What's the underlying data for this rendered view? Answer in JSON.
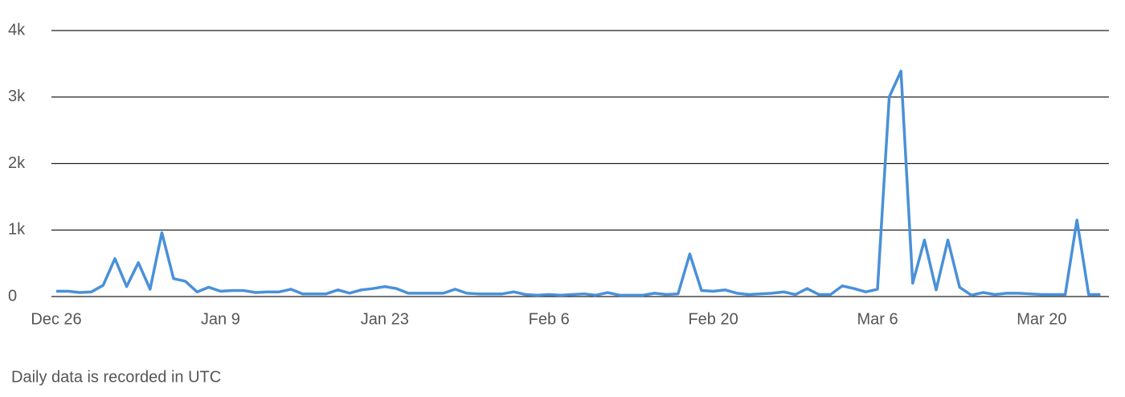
{
  "chart_data": {
    "type": "line",
    "categories": [
      "Dec 26",
      null,
      null,
      null,
      null,
      null,
      null,
      null,
      null,
      null,
      null,
      null,
      null,
      null,
      "Jan 9",
      null,
      null,
      null,
      null,
      null,
      null,
      null,
      null,
      null,
      null,
      null,
      null,
      null,
      "Jan 23",
      null,
      null,
      null,
      null,
      null,
      null,
      null,
      null,
      null,
      null,
      null,
      null,
      null,
      "Feb 6",
      null,
      null,
      null,
      null,
      null,
      null,
      null,
      null,
      null,
      null,
      null,
      null,
      null,
      "Feb 20",
      null,
      null,
      null,
      null,
      null,
      null,
      null,
      null,
      null,
      null,
      null,
      null,
      null,
      "Mar 6",
      null,
      null,
      null,
      null,
      null,
      null,
      null,
      null,
      null,
      null,
      null,
      null,
      null,
      "Mar 20",
      null,
      null,
      null,
      null,
      null
    ],
    "series": [
      {
        "name": "Daily",
        "color": "#4a90d9",
        "values": [
          80,
          80,
          60,
          70,
          170,
          570,
          150,
          510,
          110,
          960,
          270,
          230,
          70,
          140,
          80,
          90,
          90,
          60,
          70,
          70,
          110,
          40,
          40,
          40,
          100,
          50,
          100,
          120,
          150,
          120,
          50,
          50,
          50,
          50,
          110,
          50,
          40,
          40,
          40,
          70,
          30,
          20,
          30,
          20,
          30,
          40,
          20,
          60,
          20,
          20,
          20,
          50,
          30,
          40,
          640,
          90,
          80,
          100,
          50,
          30,
          40,
          50,
          70,
          30,
          120,
          30,
          30,
          160,
          120,
          70,
          110,
          3000,
          3390,
          200,
          850,
          100,
          850,
          140,
          20,
          60,
          30,
          50,
          50,
          40,
          30,
          30,
          30,
          1150,
          30,
          30
        ]
      }
    ],
    "ylim": [
      0,
      4000
    ],
    "yticks": [
      0,
      {
        "value": 1000,
        "label": "1k"
      },
      {
        "value": 2000,
        "label": "2k"
      },
      {
        "value": 3000,
        "label": "3k"
      },
      {
        "value": 4000,
        "label": "4k"
      }
    ],
    "grid": true,
    "caption": "Daily data is recorded in UTC"
  }
}
